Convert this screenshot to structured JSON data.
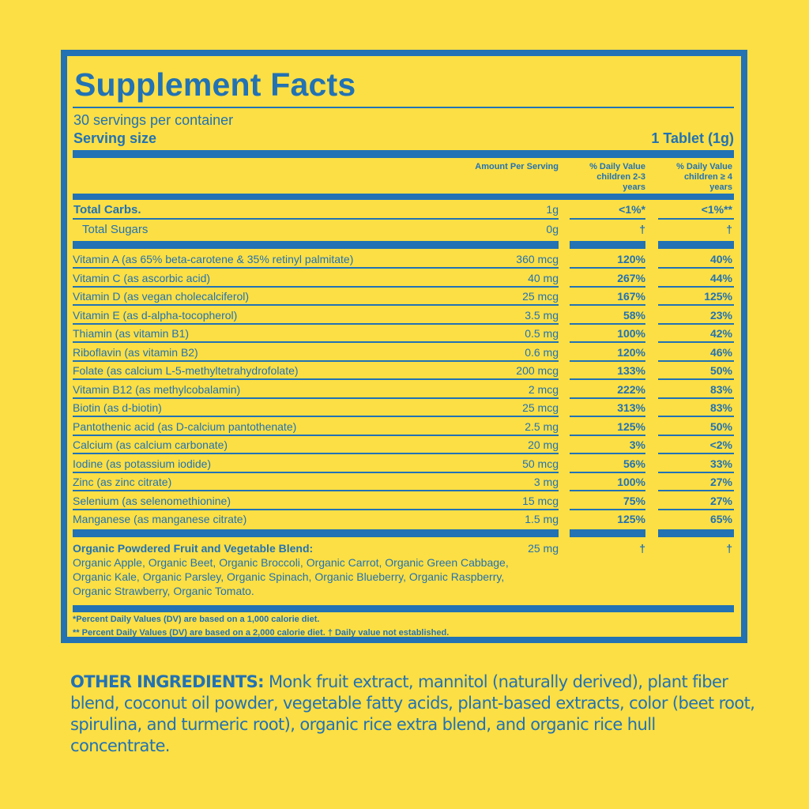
{
  "label": {
    "title": "Supplement Facts",
    "servings_per_container": "30 servings per container",
    "serving_size_label": "Serving size",
    "serving_size_value": "1 Tablet (1g)",
    "headers": {
      "amount": "Amount Per Serving",
      "dv_children_2_3": [
        "% Daily Value",
        "children 2-3",
        "years"
      ],
      "dv_children_4": [
        "% Daily Value",
        "children ≥ 4",
        "years"
      ]
    },
    "macros": [
      {
        "name": "Total Carbs.",
        "amount": "1g",
        "dv1": "<1%*",
        "dv2": "<1%**"
      },
      {
        "name": "Total Sugars",
        "amount": "0g",
        "dv1": "†",
        "dv2": "†"
      }
    ],
    "nutrients": [
      {
        "name": "Vitamin A (as 65% beta-carotene & 35% retinyl palmitate)",
        "amount": "360 mcg",
        "dv1": "120%",
        "dv2": "40%"
      },
      {
        "name": "Vitamin C (as ascorbic acid)",
        "amount": "40 mg",
        "dv1": "267%",
        "dv2": "44%"
      },
      {
        "name": "Vitamin D (as vegan cholecalciferol)",
        "amount": "25 mcg",
        "dv1": "167%",
        "dv2": "125%"
      },
      {
        "name": "Vitamin E (as d-alpha-tocopherol)",
        "amount": "3.5 mg",
        "dv1": "58%",
        "dv2": "23%"
      },
      {
        "name": "Thiamin (as vitamin B1)",
        "amount": "0.5 mg",
        "dv1": "100%",
        "dv2": "42%"
      },
      {
        "name": "Riboflavin (as vitamin B2)",
        "amount": "0.6 mg",
        "dv1": "120%",
        "dv2": "46%"
      },
      {
        "name": "Folate (as calcium L-5-methyltetrahydrofolate)",
        "amount": "200 mcg",
        "dv1": "133%",
        "dv2": "50%"
      },
      {
        "name": "Vitamin B12 (as methylcobalamin)",
        "amount": "2 mcg",
        "dv1": "222%",
        "dv2": "83%"
      },
      {
        "name": "Biotin (as d-biotin)",
        "amount": "25 mcg",
        "dv1": "313%",
        "dv2": "83%"
      },
      {
        "name": "Pantothenic acid (as D-calcium pantothenate)",
        "amount": "2.5 mg",
        "dv1": "125%",
        "dv2": "50%"
      },
      {
        "name": "Calcium (as calcium carbonate)",
        "amount": "20 mg",
        "dv1": "3%",
        "dv2": "<2%"
      },
      {
        "name": "Iodine (as potassium iodide)",
        "amount": "50 mcg",
        "dv1": "56%",
        "dv2": "33%"
      },
      {
        "name": "Zinc (as zinc citrate)",
        "amount": "3 mg",
        "dv1": "100%",
        "dv2": "27%"
      },
      {
        "name": "Selenium (as selenomethionine)",
        "amount": "15 mcg",
        "dv1": "75%",
        "dv2": "27%"
      },
      {
        "name": "Manganese (as manganese citrate)",
        "amount": "1.5 mg",
        "dv1": "125%",
        "dv2": "65%"
      }
    ],
    "blend": {
      "title": "Organic Powdered Fruit and Vegetable Blend:",
      "ingredients": "Organic Apple, Organic Beet, Organic Broccoli, Organic Carrot, Organic Green Cabbage, Organic Kale, Organic Parsley, Organic Spinach, Organic Blueberry, Organic Raspberry, Organic Strawberry, Organic Tomato.",
      "amount": "25 mg",
      "dv1": "†",
      "dv2": "†"
    },
    "footnotes": [
      "*Percent Daily Values (DV) are based on a 1,000 calorie diet.",
      "** Percent Daily Values (DV) are based on a 2,000 calorie diet. † Daily value not established."
    ]
  },
  "other_ingredients": {
    "heading": "OTHER INGREDIENTS:",
    "text": " Monk fruit extract, mannitol (naturally derived), plant fiber blend, coconut oil powder, vegetable fatty acids, plant-based extracts, color (beet root, spirulina, and turmeric root), organic rice extra blend, and organic rice hull concentrate."
  },
  "colors": {
    "background": "#fcdf44",
    "brand_blue": "#2272b4"
  }
}
